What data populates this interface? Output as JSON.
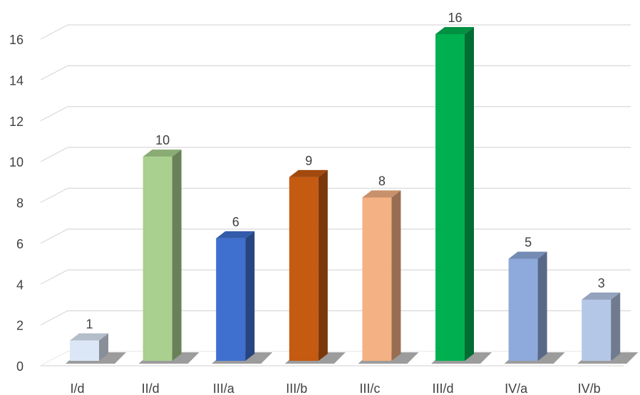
{
  "chart_data": {
    "type": "bar",
    "style": "3d-column",
    "categories": [
      "I/d",
      "II/d",
      "III/a",
      "III/b",
      "III/c",
      "III/d",
      "IV/a",
      "IV/b"
    ],
    "values": [
      1,
      10,
      6,
      9,
      8,
      16,
      5,
      3
    ],
    "data_labels": [
      "1",
      "10",
      "6",
      "9",
      "8",
      "16",
      "5",
      "3"
    ],
    "colors": [
      "#dbe7f6",
      "#a9d08e",
      "#3f6fcf",
      "#c55a11",
      "#f4b183",
      "#00b050",
      "#8ea9db",
      "#b4c7e7"
    ],
    "ylim": [
      0,
      16
    ],
    "yticks": [
      0,
      2,
      4,
      6,
      8,
      10,
      12,
      14,
      16
    ],
    "grid": true,
    "legend": "none",
    "title": "",
    "xlabel": "",
    "ylabel": ""
  }
}
